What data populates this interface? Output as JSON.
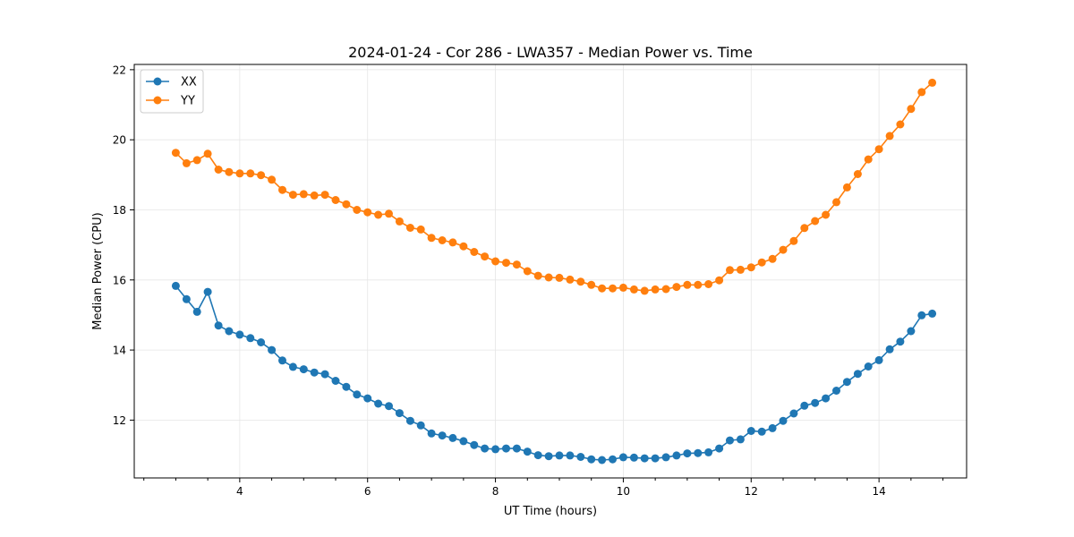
{
  "chart_data": {
    "type": "line",
    "title": "2024-01-24 - Cor 286 - LWA357 - Median Power vs. Time",
    "xlabel": "UT Time (hours)",
    "ylabel": "Median Power (CPU)",
    "xlim": [
      2.35,
      15.37
    ],
    "ylim": [
      10.35,
      22.15
    ],
    "xticks": [
      4,
      6,
      8,
      10,
      12,
      14
    ],
    "xtick_labels": [
      "4",
      "6",
      "8",
      "10",
      "12",
      "14"
    ],
    "yticks": [
      12,
      14,
      16,
      18,
      20,
      22
    ],
    "ytick_labels": [
      "12",
      "14",
      "16",
      "18",
      "20",
      "22"
    ],
    "x_minor_step": 0.5,
    "grid": true,
    "legend_position": "top-left",
    "x": [
      3.0,
      3.167,
      3.333,
      3.5,
      3.667,
      3.833,
      4.0,
      4.167,
      4.333,
      4.5,
      4.667,
      4.833,
      5.0,
      5.167,
      5.333,
      5.5,
      5.667,
      5.833,
      6.0,
      6.167,
      6.333,
      6.5,
      6.667,
      6.833,
      7.0,
      7.167,
      7.333,
      7.5,
      7.667,
      7.833,
      8.0,
      8.167,
      8.333,
      8.5,
      8.667,
      8.833,
      9.0,
      9.167,
      9.333,
      9.5,
      9.667,
      9.833,
      10.0,
      10.167,
      10.333,
      10.5,
      10.667,
      10.833,
      11.0,
      11.167,
      11.333,
      11.5,
      11.667,
      11.833,
      12.0,
      12.167,
      12.333,
      12.5,
      12.667,
      12.833,
      13.0,
      13.167,
      13.333,
      13.5,
      13.667,
      13.833,
      14.0,
      14.167,
      14.333,
      14.5,
      14.667,
      14.833
    ],
    "series": [
      {
        "name": "XX",
        "color": "#1f77b4",
        "values": [
          15.83,
          15.45,
          15.09,
          15.66,
          14.7,
          14.54,
          14.44,
          14.34,
          14.22,
          14.0,
          13.7,
          13.52,
          13.45,
          13.36,
          13.31,
          13.12,
          12.95,
          12.73,
          12.62,
          12.47,
          12.4,
          12.2,
          11.98,
          11.85,
          11.62,
          11.56,
          11.49,
          11.4,
          11.29,
          11.19,
          11.17,
          11.19,
          11.19,
          11.1,
          11.0,
          10.97,
          10.99,
          10.99,
          10.95,
          10.88,
          10.86,
          10.88,
          10.94,
          10.93,
          10.91,
          10.91,
          10.94,
          10.99,
          11.05,
          11.06,
          11.08,
          11.19,
          11.42,
          11.45,
          11.69,
          11.67,
          11.77,
          11.98,
          12.19,
          12.41,
          12.49,
          12.62,
          12.84,
          13.09,
          13.32,
          13.53,
          13.71,
          14.02,
          14.24,
          14.54,
          14.99,
          15.04
        ]
      },
      {
        "name": "YY",
        "color": "#ff7f0e",
        "values": [
          19.63,
          19.33,
          19.42,
          19.6,
          19.15,
          19.08,
          19.04,
          19.04,
          18.99,
          18.86,
          18.57,
          18.43,
          18.45,
          18.41,
          18.43,
          18.28,
          18.16,
          18.0,
          17.93,
          17.86,
          17.89,
          17.67,
          17.49,
          17.44,
          17.2,
          17.13,
          17.07,
          16.96,
          16.8,
          16.67,
          16.53,
          16.49,
          16.44,
          16.25,
          16.12,
          16.07,
          16.06,
          16.01,
          15.95,
          15.86,
          15.76,
          15.76,
          15.78,
          15.73,
          15.69,
          15.73,
          15.74,
          15.8,
          15.86,
          15.86,
          15.88,
          15.99,
          16.28,
          16.29,
          16.36,
          16.5,
          16.6,
          16.86,
          17.11,
          17.48,
          17.68,
          17.86,
          18.22,
          18.64,
          19.02,
          19.44,
          19.73,
          20.11,
          20.44,
          20.88,
          21.36,
          21.63
        ]
      }
    ]
  }
}
